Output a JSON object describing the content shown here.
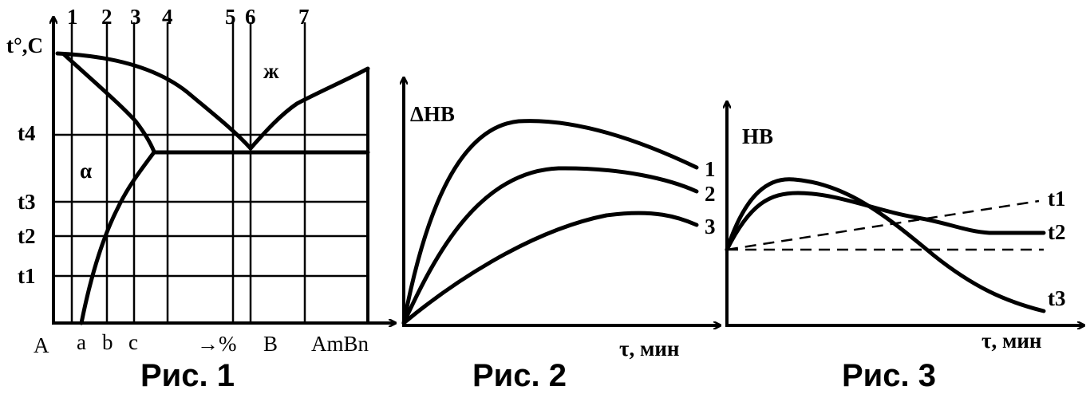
{
  "fig1": {
    "caption": "Рис. 1",
    "y_axis_label": "t°,C",
    "temps": [
      "t4",
      "t3",
      "t2",
      "t1"
    ],
    "verticals": [
      "1",
      "2",
      "3",
      "4",
      "5",
      "6",
      "7"
    ],
    "x_labels": [
      "A",
      "a",
      "b",
      "c",
      "→%",
      "B",
      "AmBn"
    ],
    "phase_alpha": "α",
    "phase_liquid": "ж"
  },
  "fig2": {
    "caption": "Рис. 2",
    "y_axis_label": "ΔHB",
    "x_axis_label": "τ, мин",
    "curves": [
      "1",
      "2",
      "3"
    ]
  },
  "fig3": {
    "caption": "Рис. 3",
    "y_axis_label": "HB",
    "x_axis_label": "τ, мин",
    "curves": [
      "t1",
      "t2",
      "t3"
    ]
  }
}
